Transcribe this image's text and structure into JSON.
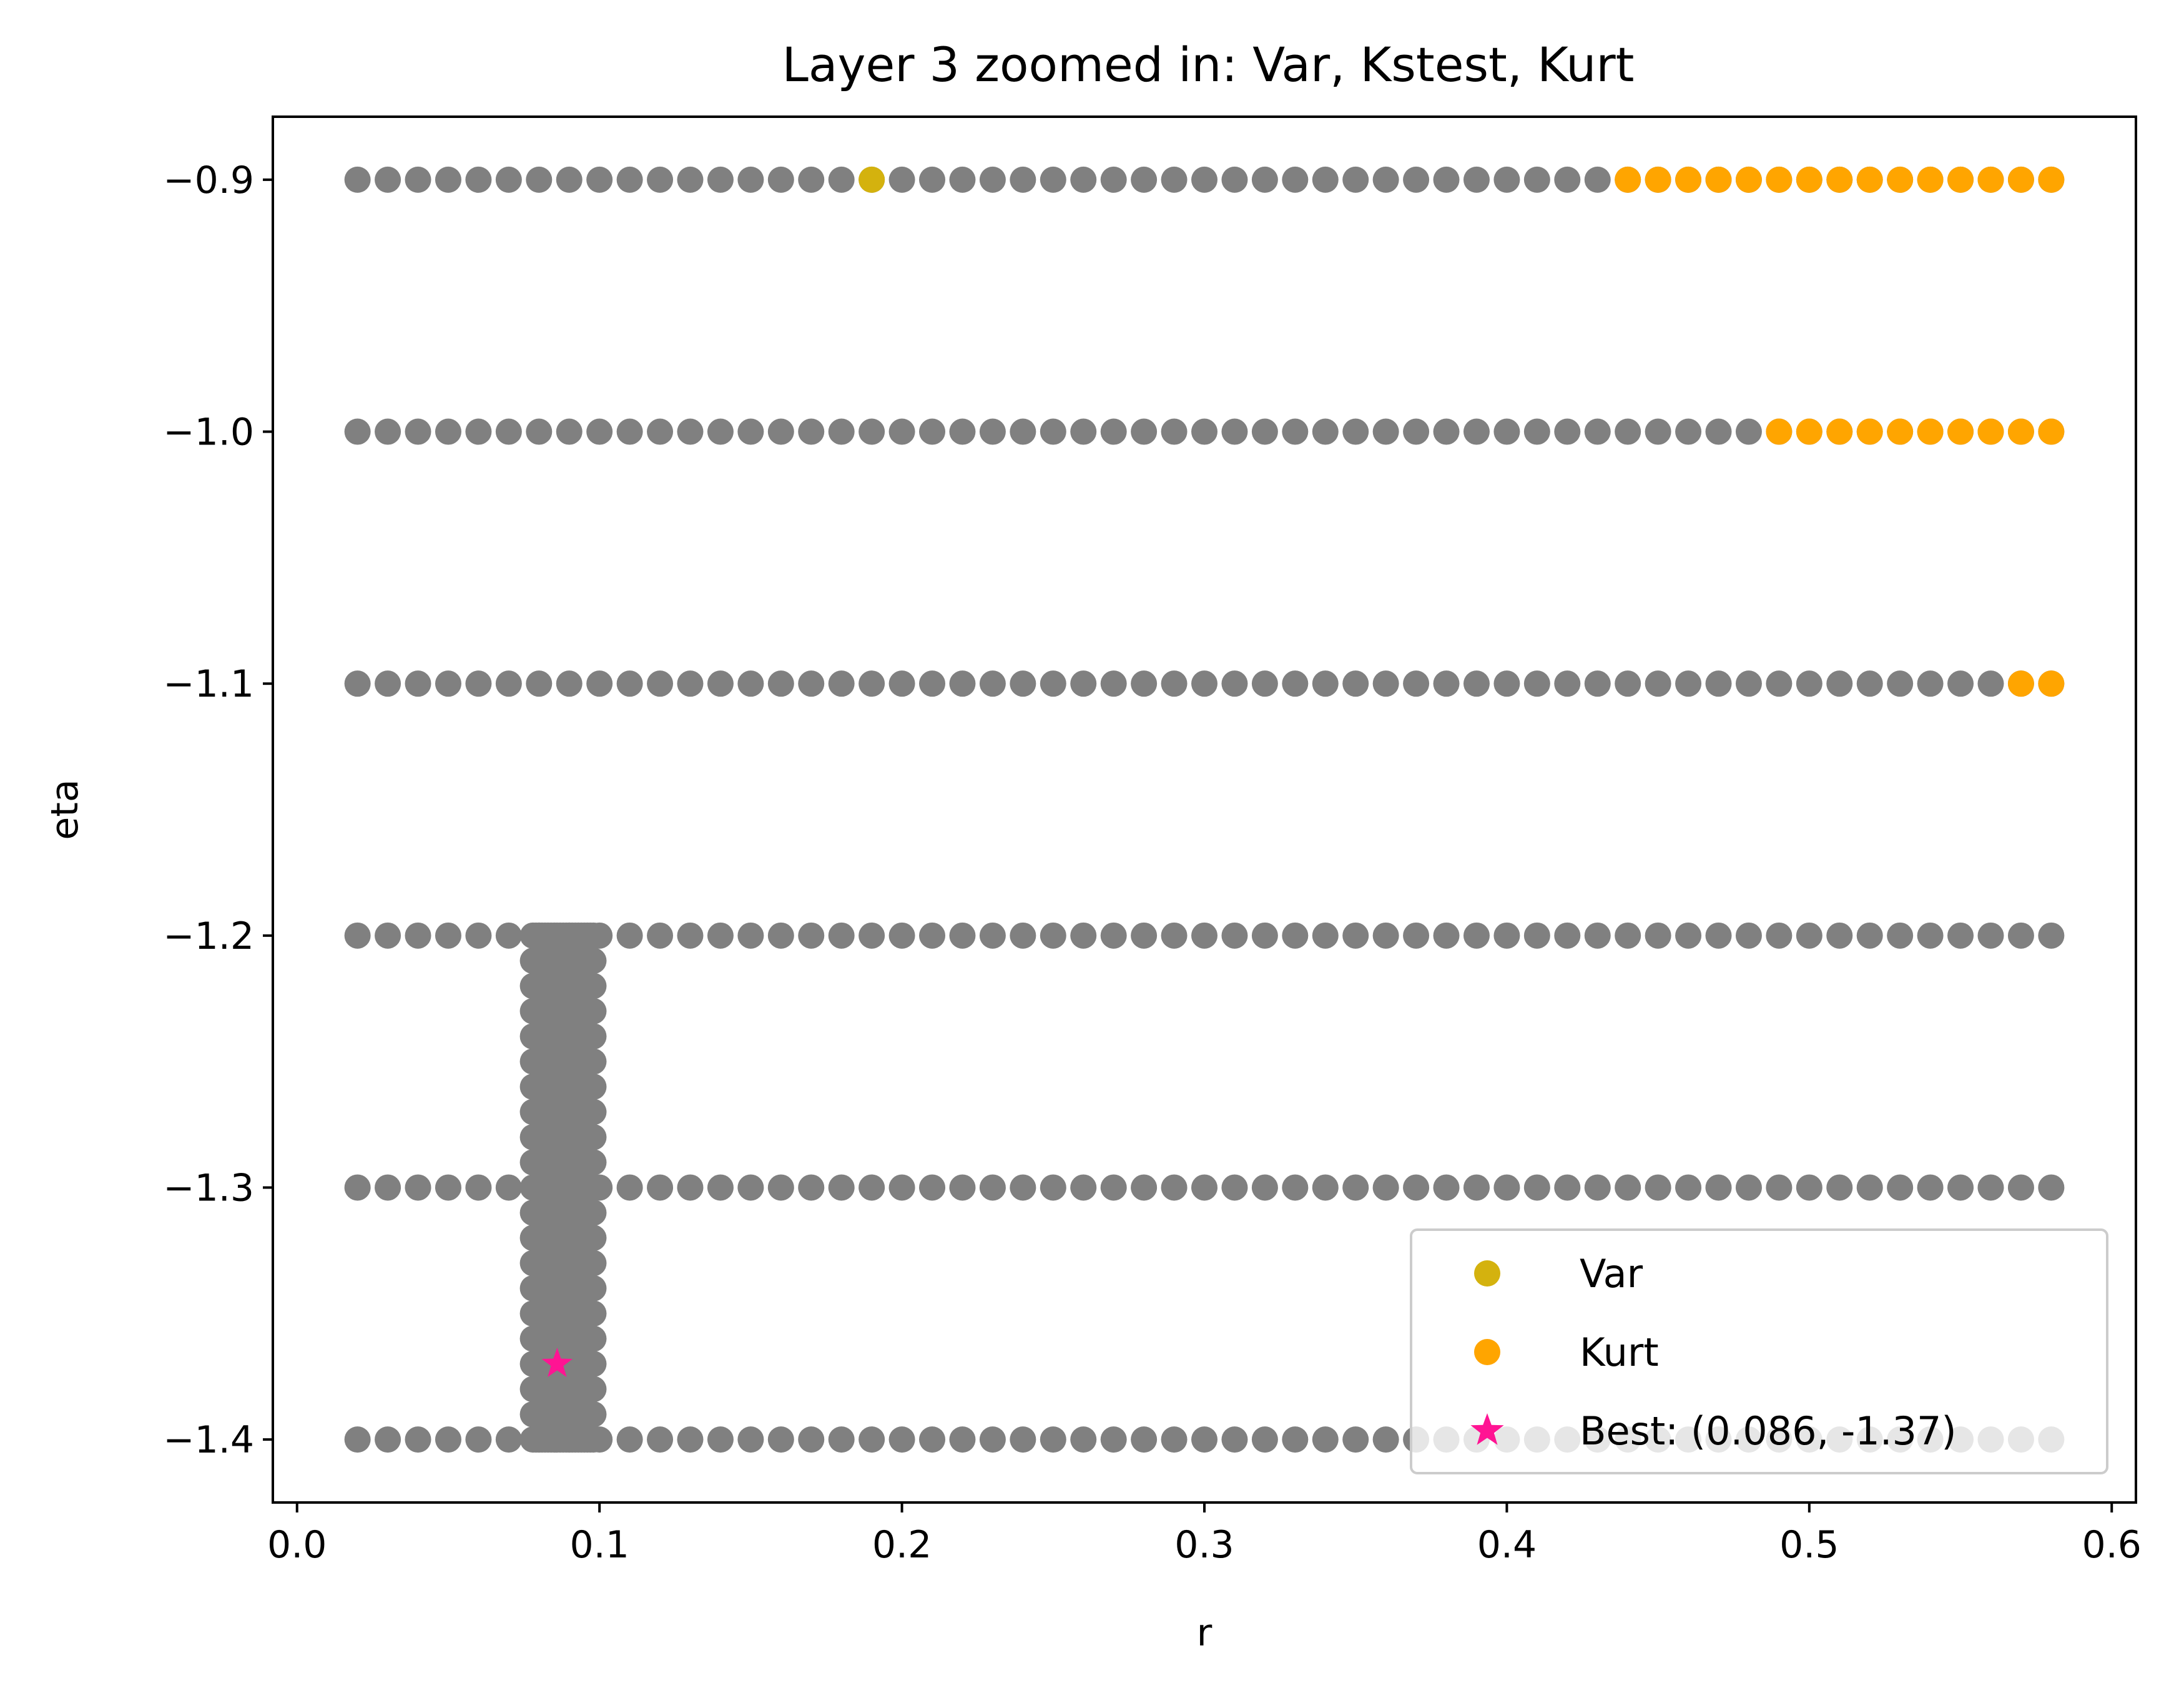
{
  "chart_data": {
    "type": "scatter",
    "title": "Layer 3 zoomed in: Var, Kstest, Kurt",
    "xlabel": "r",
    "ylabel": "eta",
    "xlim": [
      -0.008,
      0.608
    ],
    "ylim": [
      -1.425,
      -0.875
    ],
    "xticks": [
      0.0,
      0.1,
      0.2,
      0.3,
      0.4,
      0.5,
      0.6
    ],
    "xtick_labels": [
      "0.0",
      "0.1",
      "0.2",
      "0.3",
      "0.4",
      "0.5",
      "0.6"
    ],
    "yticks": [
      -0.9,
      -1.0,
      -1.1,
      -1.2,
      -1.3,
      -1.4
    ],
    "ytick_labels": [
      "−0.9",
      "−1.0",
      "−1.1",
      "−1.2",
      "−1.3",
      "−1.4"
    ],
    "grid": false,
    "legend_position": "lower-right",
    "colors": {
      "grid_points": "#808080",
      "var": "#d4b20e",
      "kurt": "#ffa500",
      "best": "#ff1493"
    },
    "coarse_grid": {
      "r_start": 0.02,
      "r_end": 0.58,
      "r_step": 0.01,
      "eta_rows": [
        -0.9,
        -1.0,
        -1.1,
        -1.2,
        -1.3,
        -1.4
      ]
    },
    "fine_grid": {
      "r_start": 0.078,
      "r_end": 0.098,
      "r_step": 0.001,
      "eta_start": -1.2,
      "eta_end": -1.4,
      "eta_step": -0.01
    },
    "series": [
      {
        "name": "Var",
        "points": [
          [
            0.19,
            -0.9
          ]
        ]
      },
      {
        "name": "Kurt",
        "points": [
          [
            0.44,
            -0.9
          ],
          [
            0.45,
            -0.9
          ],
          [
            0.46,
            -0.9
          ],
          [
            0.47,
            -0.9
          ],
          [
            0.48,
            -0.9
          ],
          [
            0.49,
            -0.9
          ],
          [
            0.5,
            -0.9
          ],
          [
            0.51,
            -0.9
          ],
          [
            0.52,
            -0.9
          ],
          [
            0.53,
            -0.9
          ],
          [
            0.54,
            -0.9
          ],
          [
            0.55,
            -0.9
          ],
          [
            0.56,
            -0.9
          ],
          [
            0.57,
            -0.9
          ],
          [
            0.58,
            -0.9
          ],
          [
            0.49,
            -1.0
          ],
          [
            0.5,
            -1.0
          ],
          [
            0.51,
            -1.0
          ],
          [
            0.52,
            -1.0
          ],
          [
            0.53,
            -1.0
          ],
          [
            0.54,
            -1.0
          ],
          [
            0.55,
            -1.0
          ],
          [
            0.56,
            -1.0
          ],
          [
            0.57,
            -1.0
          ],
          [
            0.58,
            -1.0
          ],
          [
            0.57,
            -1.1
          ],
          [
            0.58,
            -1.1
          ]
        ]
      },
      {
        "name": "Best: (0.086, -1.37)",
        "points": [
          [
            0.086,
            -1.37
          ]
        ]
      }
    ],
    "legend": [
      {
        "label": "Var",
        "marker": "circle",
        "color": "#d4b20e"
      },
      {
        "label": "Kurt",
        "marker": "circle",
        "color": "#ffa500"
      },
      {
        "label": "Best: (0.086, -1.37)",
        "marker": "star",
        "color": "#ff1493"
      }
    ]
  }
}
